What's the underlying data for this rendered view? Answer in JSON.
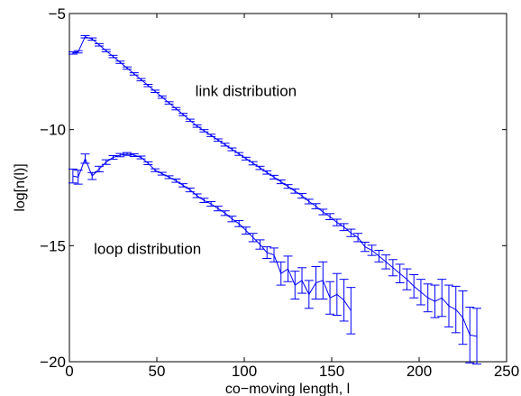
{
  "chart_data": {
    "type": "line",
    "xlabel": "co−moving length, l",
    "ylabel": "log[n(l)]",
    "xlim": [
      0,
      250
    ],
    "ylim": [
      -20,
      -5
    ],
    "xticks": [
      0,
      50,
      100,
      150,
      200,
      250
    ],
    "xtick_labels": [
      "0",
      "50",
      "100",
      "150",
      "200",
      "250"
    ],
    "yticks": [
      -20,
      -15,
      -10,
      -5
    ],
    "ytick_labels": [
      "−20",
      "−15",
      "−10",
      "−5"
    ],
    "grid": false,
    "color": "#0000ff",
    "annotations": [
      {
        "text": "link distribution",
        "x": 72,
        "y": -8.55
      },
      {
        "text": "loop distribution",
        "x": 14,
        "y": -15.35
      }
    ],
    "series": [
      {
        "x": [
          2,
          5,
          9,
          13,
          17,
          21,
          25,
          29,
          33,
          37,
          41,
          45,
          49,
          53,
          57,
          61,
          65,
          69,
          73,
          77,
          81,
          85,
          89,
          93,
          97,
          101,
          105,
          109,
          113,
          117,
          121,
          125,
          129,
          133,
          137,
          141,
          145,
          149,
          153,
          157,
          161,
          165,
          169,
          173,
          177,
          181,
          185,
          189,
          193,
          197,
          201,
          205,
          209,
          213,
          217,
          221,
          225,
          229,
          233
        ],
        "y": [
          -6.7,
          -6.65,
          -6.0,
          -6.1,
          -6.35,
          -6.6,
          -6.85,
          -7.1,
          -7.35,
          -7.6,
          -7.85,
          -8.1,
          -8.35,
          -8.6,
          -8.85,
          -9.1,
          -9.35,
          -9.6,
          -9.85,
          -10.05,
          -10.25,
          -10.45,
          -10.65,
          -10.85,
          -11.05,
          -11.25,
          -11.45,
          -11.65,
          -11.85,
          -12.05,
          -12.25,
          -12.45,
          -12.65,
          -12.85,
          -13.1,
          -13.3,
          -13.55,
          -13.75,
          -14.0,
          -14.2,
          -14.45,
          -14.65,
          -15.05,
          -15.2,
          -15.45,
          -15.7,
          -15.95,
          -16.2,
          -16.45,
          -16.75,
          -17.0,
          -17.25,
          -17.4,
          -17.25,
          -17.6,
          -17.75,
          -18.1,
          -18.85,
          -18.9
        ],
        "err": [
          0.05,
          0.05,
          0.05,
          0.05,
          0.05,
          0.05,
          0.05,
          0.05,
          0.05,
          0.05,
          0.05,
          0.05,
          0.05,
          0.05,
          0.05,
          0.05,
          0.05,
          0.05,
          0.05,
          0.05,
          0.05,
          0.05,
          0.06,
          0.06,
          0.06,
          0.06,
          0.07,
          0.07,
          0.07,
          0.08,
          0.08,
          0.08,
          0.09,
          0.1,
          0.1,
          0.11,
          0.12,
          0.13,
          0.14,
          0.15,
          0.16,
          0.18,
          0.2,
          0.22,
          0.25,
          0.3,
          0.35,
          0.4,
          0.45,
          0.5,
          0.55,
          0.6,
          0.7,
          0.8,
          0.9,
          1.0,
          1.15,
          1.2,
          1.2
        ]
      },
      {
        "x": [
          2,
          5,
          9,
          13,
          17,
          21,
          25,
          29,
          33,
          37,
          41,
          45,
          49,
          53,
          57,
          61,
          65,
          69,
          73,
          77,
          81,
          85,
          89,
          93,
          97,
          101,
          105,
          109,
          113,
          117,
          121,
          125,
          129,
          133,
          137,
          141,
          145,
          149,
          153,
          157,
          161
        ],
        "y": [
          -12.0,
          -12.05,
          -11.25,
          -12.0,
          -11.7,
          -11.4,
          -11.2,
          -11.1,
          -11.05,
          -11.1,
          -11.2,
          -11.45,
          -11.75,
          -11.9,
          -12.05,
          -12.2,
          -12.4,
          -12.6,
          -12.85,
          -13.05,
          -13.2,
          -13.4,
          -13.6,
          -13.85,
          -14.05,
          -14.35,
          -14.65,
          -14.95,
          -15.3,
          -15.4,
          -16.2,
          -16.0,
          -16.7,
          -16.5,
          -17.1,
          -16.6,
          -16.5,
          -17.25,
          -17.1,
          -17.35,
          -17.8
        ],
        "err": [
          0.3,
          0.3,
          0.2,
          0.15,
          0.12,
          0.1,
          0.08,
          0.07,
          0.06,
          0.06,
          0.06,
          0.06,
          0.06,
          0.06,
          0.06,
          0.07,
          0.07,
          0.08,
          0.08,
          0.09,
          0.1,
          0.1,
          0.1,
          0.12,
          0.13,
          0.15,
          0.18,
          0.2,
          0.25,
          0.3,
          0.5,
          0.55,
          0.6,
          0.55,
          0.6,
          0.7,
          0.8,
          0.7,
          0.9,
          0.9,
          1.0
        ]
      }
    ]
  }
}
